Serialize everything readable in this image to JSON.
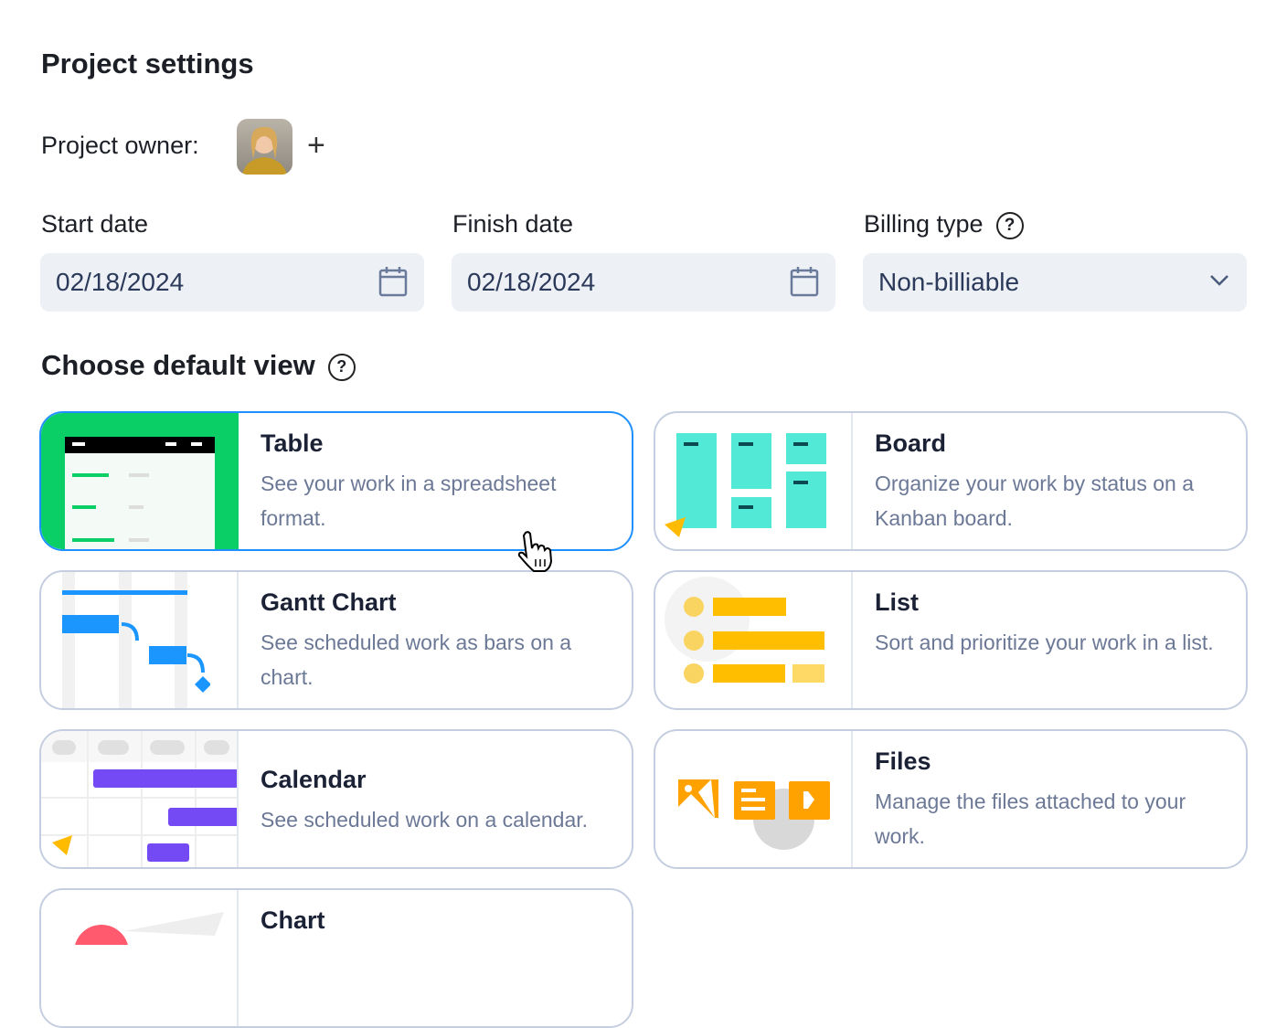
{
  "title": "Project settings",
  "owner": {
    "label": "Project owner:",
    "add_icon": "plus-icon"
  },
  "start_date": {
    "label": "Start date",
    "value": "02/18/2024"
  },
  "finish_date": {
    "label": "Finish date",
    "value": "02/18/2024"
  },
  "billing": {
    "label": "Billing type",
    "value": "Non-billiable"
  },
  "help_mark": "?",
  "views": {
    "heading": "Choose default view",
    "selected": "Table",
    "items": [
      {
        "title": "Table",
        "desc": "See your work in a spreadsheet format."
      },
      {
        "title": "Board",
        "desc": "Organize your work by status on a Kanban board."
      },
      {
        "title": "Gantt Chart",
        "desc": "See scheduled work as bars on a chart."
      },
      {
        "title": "List",
        "desc": "Sort and prioritize your work in a list."
      },
      {
        "title": "Calendar",
        "desc": "See scheduled work on a calendar."
      },
      {
        "title": "Files",
        "desc": "Manage the files attached to your work."
      },
      {
        "title": "Chart",
        "desc": ""
      }
    ]
  },
  "colors": {
    "selected_border": "#1e90ff",
    "table": "#0acf66",
    "board": "#52ead6",
    "gantt": "#1b96ff",
    "list": "#ffbf00",
    "calendar": "#744af5",
    "files": "#ffa200"
  }
}
